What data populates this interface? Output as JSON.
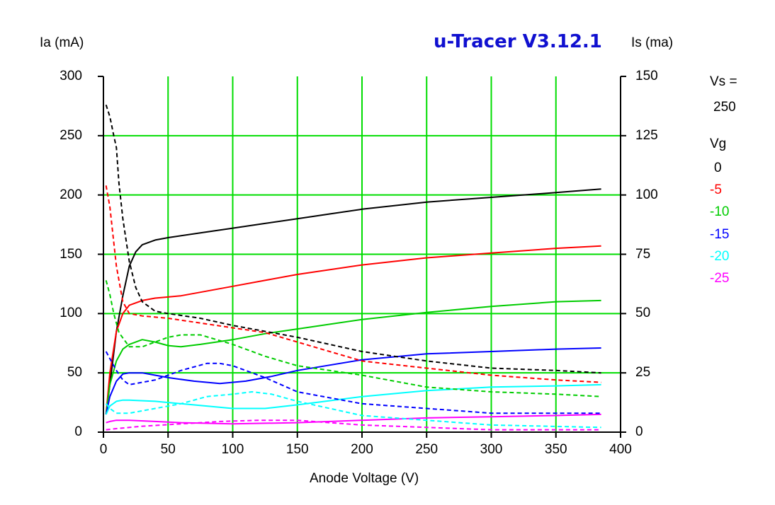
{
  "title": "u-Tracer V3.12.1",
  "left_axis_label": "Ia (mA)",
  "right_axis_label": "Is (ma)",
  "x_axis_label": "Anode Voltage (V)",
  "legend": {
    "vs_label": "Vs =",
    "vs_value": "250",
    "vg_label": "Vg",
    "entries": [
      {
        "label": "0",
        "color": "#000000"
      },
      {
        "label": "-5",
        "color": "#ff0000"
      },
      {
        "label": "-10",
        "color": "#00cc00"
      },
      {
        "label": "-15",
        "color": "#0000ff"
      },
      {
        "label": "-20",
        "color": "#00ffff"
      },
      {
        "label": "-25",
        "color": "#ff00ff"
      }
    ]
  },
  "colors": {
    "grid": "#00dd00",
    "frame": "#000000",
    "title": "#1010d0"
  },
  "chart_data": {
    "type": "line",
    "title": "u-Tracer V3.12.1",
    "xlabel": "Anode Voltage (V)",
    "ylabel": "Ia (mA)",
    "y2label": "Is (ma)",
    "xlim": [
      0,
      400
    ],
    "ylim": [
      0,
      300
    ],
    "y2lim": [
      0,
      150
    ],
    "x_ticks": [
      0,
      50,
      100,
      150,
      200,
      250,
      300,
      350,
      400
    ],
    "y_ticks": [
      0,
      50,
      100,
      150,
      200,
      250,
      300
    ],
    "y2_ticks": [
      0,
      25,
      50,
      75,
      100,
      125,
      150
    ],
    "grid": true,
    "series": [
      {
        "name": "0",
        "color": "#000000",
        "axis": "left",
        "dashed": false,
        "points": [
          [
            2,
            15
          ],
          [
            5,
            40
          ],
          [
            10,
            85
          ],
          [
            15,
            115
          ],
          [
            20,
            140
          ],
          [
            25,
            152
          ],
          [
            30,
            158
          ],
          [
            40,
            162
          ],
          [
            50,
            164
          ],
          [
            75,
            168
          ],
          [
            100,
            172
          ],
          [
            125,
            176
          ],
          [
            150,
            180
          ],
          [
            175,
            184
          ],
          [
            200,
            188
          ],
          [
            250,
            194
          ],
          [
            300,
            198
          ],
          [
            350,
            202
          ],
          [
            385,
            205
          ]
        ]
      },
      {
        "name": "-5",
        "color": "#ff0000",
        "axis": "left",
        "dashed": false,
        "points": [
          [
            2,
            15
          ],
          [
            5,
            50
          ],
          [
            10,
            85
          ],
          [
            15,
            100
          ],
          [
            20,
            107
          ],
          [
            30,
            111
          ],
          [
            40,
            113
          ],
          [
            50,
            114
          ],
          [
            60,
            115
          ],
          [
            75,
            118
          ],
          [
            100,
            123
          ],
          [
            125,
            128
          ],
          [
            150,
            133
          ],
          [
            200,
            141
          ],
          [
            250,
            147
          ],
          [
            300,
            151
          ],
          [
            350,
            155
          ],
          [
            385,
            157
          ]
        ]
      },
      {
        "name": "-10",
        "color": "#00cc00",
        "axis": "left",
        "dashed": false,
        "points": [
          [
            2,
            15
          ],
          [
            5,
            40
          ],
          [
            10,
            60
          ],
          [
            15,
            70
          ],
          [
            20,
            74
          ],
          [
            30,
            78
          ],
          [
            40,
            76
          ],
          [
            50,
            73
          ],
          [
            60,
            72
          ],
          [
            75,
            74
          ],
          [
            100,
            78
          ],
          [
            125,
            83
          ],
          [
            150,
            87
          ],
          [
            200,
            95
          ],
          [
            250,
            101
          ],
          [
            300,
            106
          ],
          [
            350,
            110
          ],
          [
            385,
            111
          ]
        ]
      },
      {
        "name": "-15",
        "color": "#0000ff",
        "axis": "left",
        "dashed": false,
        "points": [
          [
            2,
            15
          ],
          [
            5,
            30
          ],
          [
            10,
            43
          ],
          [
            15,
            49
          ],
          [
            20,
            50
          ],
          [
            30,
            50
          ],
          [
            40,
            48
          ],
          [
            50,
            46
          ],
          [
            70,
            43
          ],
          [
            90,
            41
          ],
          [
            110,
            43
          ],
          [
            130,
            47
          ],
          [
            150,
            52
          ],
          [
            200,
            61
          ],
          [
            250,
            66
          ],
          [
            300,
            68
          ],
          [
            350,
            70
          ],
          [
            385,
            71
          ]
        ]
      },
      {
        "name": "-20",
        "color": "#00ffff",
        "axis": "left",
        "dashed": false,
        "points": [
          [
            2,
            15
          ],
          [
            5,
            22
          ],
          [
            10,
            26
          ],
          [
            15,
            27
          ],
          [
            20,
            27
          ],
          [
            40,
            26
          ],
          [
            60,
            24
          ],
          [
            80,
            22
          ],
          [
            100,
            20
          ],
          [
            125,
            20
          ],
          [
            150,
            23
          ],
          [
            200,
            30
          ],
          [
            250,
            35
          ],
          [
            300,
            38
          ],
          [
            350,
            39
          ],
          [
            385,
            40
          ]
        ]
      },
      {
        "name": "-25",
        "color": "#ff00ff",
        "axis": "left",
        "dashed": false,
        "points": [
          [
            2,
            8
          ],
          [
            5,
            9
          ],
          [
            10,
            10
          ],
          [
            20,
            10
          ],
          [
            40,
            9
          ],
          [
            60,
            8
          ],
          [
            100,
            7
          ],
          [
            150,
            8
          ],
          [
            200,
            10
          ],
          [
            250,
            12
          ],
          [
            300,
            13
          ],
          [
            350,
            14
          ],
          [
            385,
            15
          ]
        ]
      },
      {
        "name": "0",
        "color": "#000000",
        "axis": "right",
        "dashed": true,
        "points": [
          [
            2,
            138
          ],
          [
            5,
            133
          ],
          [
            8,
            125
          ],
          [
            10,
            120
          ],
          [
            12,
            105
          ],
          [
            15,
            90
          ],
          [
            20,
            72
          ],
          [
            25,
            61
          ],
          [
            30,
            55
          ],
          [
            40,
            51
          ],
          [
            50,
            50
          ],
          [
            75,
            48
          ],
          [
            100,
            45
          ],
          [
            150,
            40
          ],
          [
            200,
            34
          ],
          [
            250,
            30
          ],
          [
            300,
            27
          ],
          [
            350,
            26
          ],
          [
            385,
            25
          ]
        ]
      },
      {
        "name": "-5",
        "color": "#ff0000",
        "axis": "right",
        "dashed": true,
        "points": [
          [
            2,
            104
          ],
          [
            5,
            95
          ],
          [
            8,
            80
          ],
          [
            10,
            70
          ],
          [
            15,
            55
          ],
          [
            20,
            50
          ],
          [
            30,
            49
          ],
          [
            50,
            48
          ],
          [
            75,
            46
          ],
          [
            100,
            44
          ],
          [
            125,
            42
          ],
          [
            150,
            38
          ],
          [
            200,
            30
          ],
          [
            250,
            27
          ],
          [
            300,
            24
          ],
          [
            350,
            22
          ],
          [
            385,
            21
          ]
        ]
      },
      {
        "name": "-10",
        "color": "#00cc00",
        "axis": "right",
        "dashed": true,
        "points": [
          [
            2,
            64
          ],
          [
            5,
            58
          ],
          [
            8,
            50
          ],
          [
            12,
            42
          ],
          [
            20,
            36
          ],
          [
            30,
            36
          ],
          [
            40,
            38
          ],
          [
            50,
            40
          ],
          [
            60,
            41
          ],
          [
            75,
            41
          ],
          [
            100,
            37
          ],
          [
            125,
            32
          ],
          [
            150,
            28
          ],
          [
            200,
            24
          ],
          [
            250,
            19
          ],
          [
            300,
            17
          ],
          [
            350,
            16
          ],
          [
            385,
            15
          ]
        ]
      },
      {
        "name": "-15",
        "color": "#0000ff",
        "axis": "right",
        "dashed": true,
        "points": [
          [
            2,
            34
          ],
          [
            5,
            31
          ],
          [
            10,
            26
          ],
          [
            15,
            22
          ],
          [
            20,
            20
          ],
          [
            40,
            22
          ],
          [
            60,
            26
          ],
          [
            80,
            29
          ],
          [
            90,
            29
          ],
          [
            100,
            28
          ],
          [
            125,
            23
          ],
          [
            150,
            17
          ],
          [
            200,
            12
          ],
          [
            250,
            10
          ],
          [
            300,
            8
          ],
          [
            350,
            8
          ],
          [
            385,
            8
          ]
        ]
      },
      {
        "name": "-20",
        "color": "#00ffff",
        "axis": "right",
        "dashed": true,
        "points": [
          [
            2,
            12
          ],
          [
            5,
            10
          ],
          [
            10,
            8
          ],
          [
            20,
            8
          ],
          [
            40,
            10
          ],
          [
            60,
            12
          ],
          [
            80,
            15
          ],
          [
            100,
            16
          ],
          [
            115,
            17
          ],
          [
            130,
            16
          ],
          [
            150,
            13
          ],
          [
            200,
            7
          ],
          [
            250,
            5
          ],
          [
            300,
            3
          ],
          [
            385,
            2
          ]
        ]
      },
      {
        "name": "-25",
        "color": "#ff00ff",
        "axis": "right",
        "dashed": true,
        "points": [
          [
            2,
            1
          ],
          [
            10,
            1.5
          ],
          [
            30,
            2.5
          ],
          [
            60,
            3.5
          ],
          [
            90,
            4.5
          ],
          [
            120,
            5
          ],
          [
            150,
            5
          ],
          [
            175,
            4
          ],
          [
            200,
            3
          ],
          [
            250,
            2
          ],
          [
            300,
            1
          ],
          [
            385,
            1
          ]
        ]
      }
    ]
  }
}
